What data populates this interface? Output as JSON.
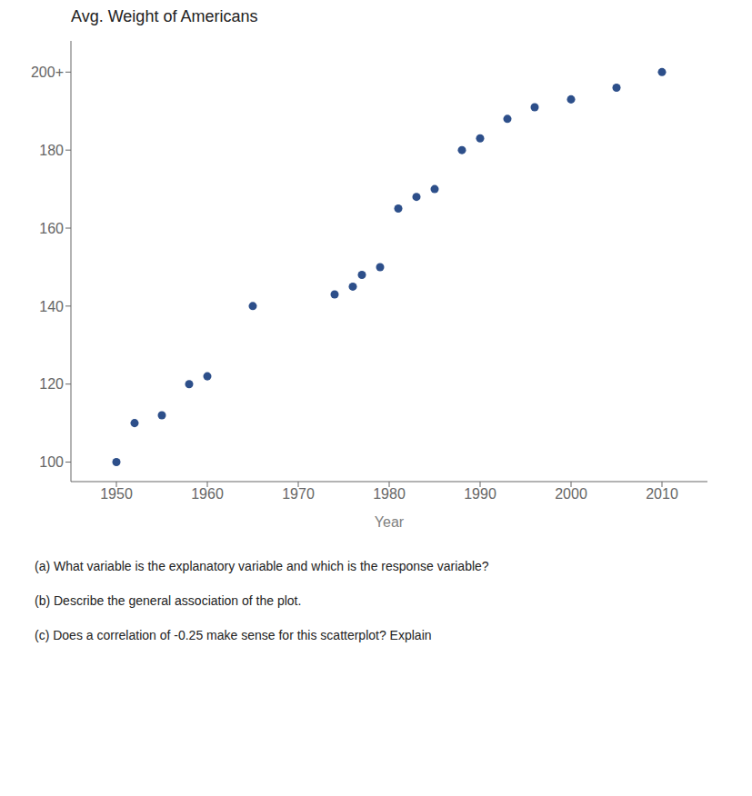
{
  "chart_data": {
    "type": "scatter",
    "title": "Avg. Weight of Americans",
    "xlabel": "Year",
    "x": [
      1950,
      1952,
      1955,
      1958,
      1960,
      1965,
      1974,
      1976,
      1977,
      1979,
      1981,
      1983,
      1985,
      1988,
      1990,
      1993,
      1996,
      2000,
      2005,
      2010
    ],
    "values": [
      100,
      110,
      112,
      120,
      122,
      140,
      143,
      145,
      148,
      150,
      165,
      168,
      170,
      180,
      183,
      188,
      191,
      193,
      196,
      200
    ],
    "color": "#2d4f8a",
    "xlim": [
      1945,
      2015
    ],
    "ylim": [
      95,
      208
    ],
    "xticks": [
      1950,
      1960,
      1970,
      1980,
      1990,
      2000,
      2010
    ],
    "yticks": [
      100,
      120,
      140,
      160,
      180,
      {
        "value": 200,
        "label": "200+"
      }
    ],
    "grid": false,
    "annotations": [
      "(a) What variable is the explanatory variable and which is the response variable?",
      "(b) Describe the general association of the plot.",
      "(c) Does a correlation of -0.25 make sense for this scatterplot? Explain"
    ]
  }
}
